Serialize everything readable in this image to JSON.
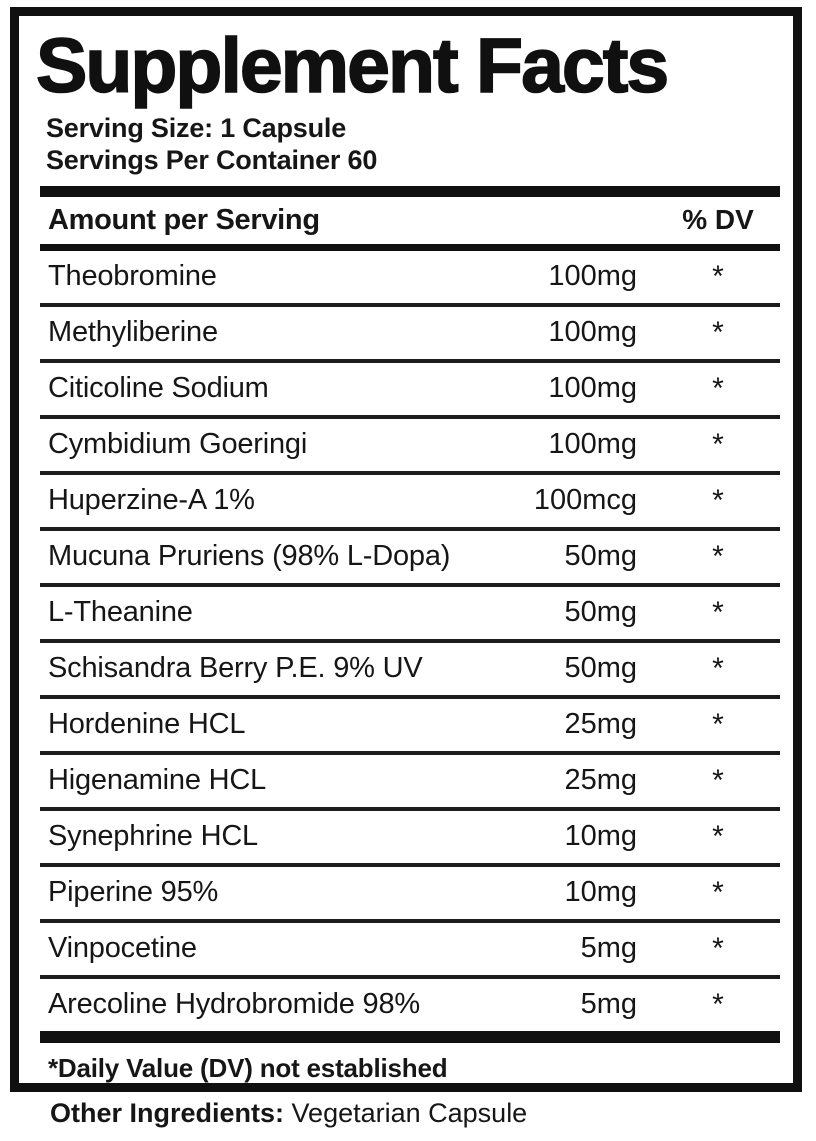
{
  "colors": {
    "ink": "#101010",
    "background": "#ffffff"
  },
  "panel": {
    "title": "Supplement Facts",
    "serving_size": "Serving Size: 1 Capsule",
    "servings_per_container": "Servings Per Container 60",
    "table": {
      "amount_header": "Amount per Serving",
      "dv_header": "% DV",
      "rows": [
        {
          "name": "Theobromine",
          "amount": "100mg",
          "dv": "*"
        },
        {
          "name": "Methyliberine",
          "amount": "100mg",
          "dv": "*"
        },
        {
          "name": "Citicoline Sodium",
          "amount": "100mg",
          "dv": "*"
        },
        {
          "name": "Cymbidium Goeringi",
          "amount": "100mg",
          "dv": "*"
        },
        {
          "name": "Huperzine-A 1%",
          "amount": "100mcg",
          "dv": "*"
        },
        {
          "name": "Mucuna Pruriens (98% L-Dopa)",
          "amount": "50mg",
          "dv": "*"
        },
        {
          "name": "L-Theanine",
          "amount": "50mg",
          "dv": "*"
        },
        {
          "name": "Schisandra Berry P.E. 9% UV",
          "amount": "50mg",
          "dv": "*"
        },
        {
          "name": "Hordenine HCL",
          "amount": "25mg",
          "dv": "*"
        },
        {
          "name": "Higenamine HCL",
          "amount": "25mg",
          "dv": "*"
        },
        {
          "name": "Synephrine HCL",
          "amount": "10mg",
          "dv": "*"
        },
        {
          "name": "Piperine 95%",
          "amount": "10mg",
          "dv": "*"
        },
        {
          "name": "Vinpocetine",
          "amount": "5mg",
          "dv": "*"
        },
        {
          "name": "Arecoline Hydrobromide 98%",
          "amount": "5mg",
          "dv": "*"
        }
      ]
    },
    "footnote": "*Daily Value (DV) not established"
  },
  "other_ingredients": {
    "label": "Other Ingredients:",
    "value": " Vegetarian Capsule"
  }
}
